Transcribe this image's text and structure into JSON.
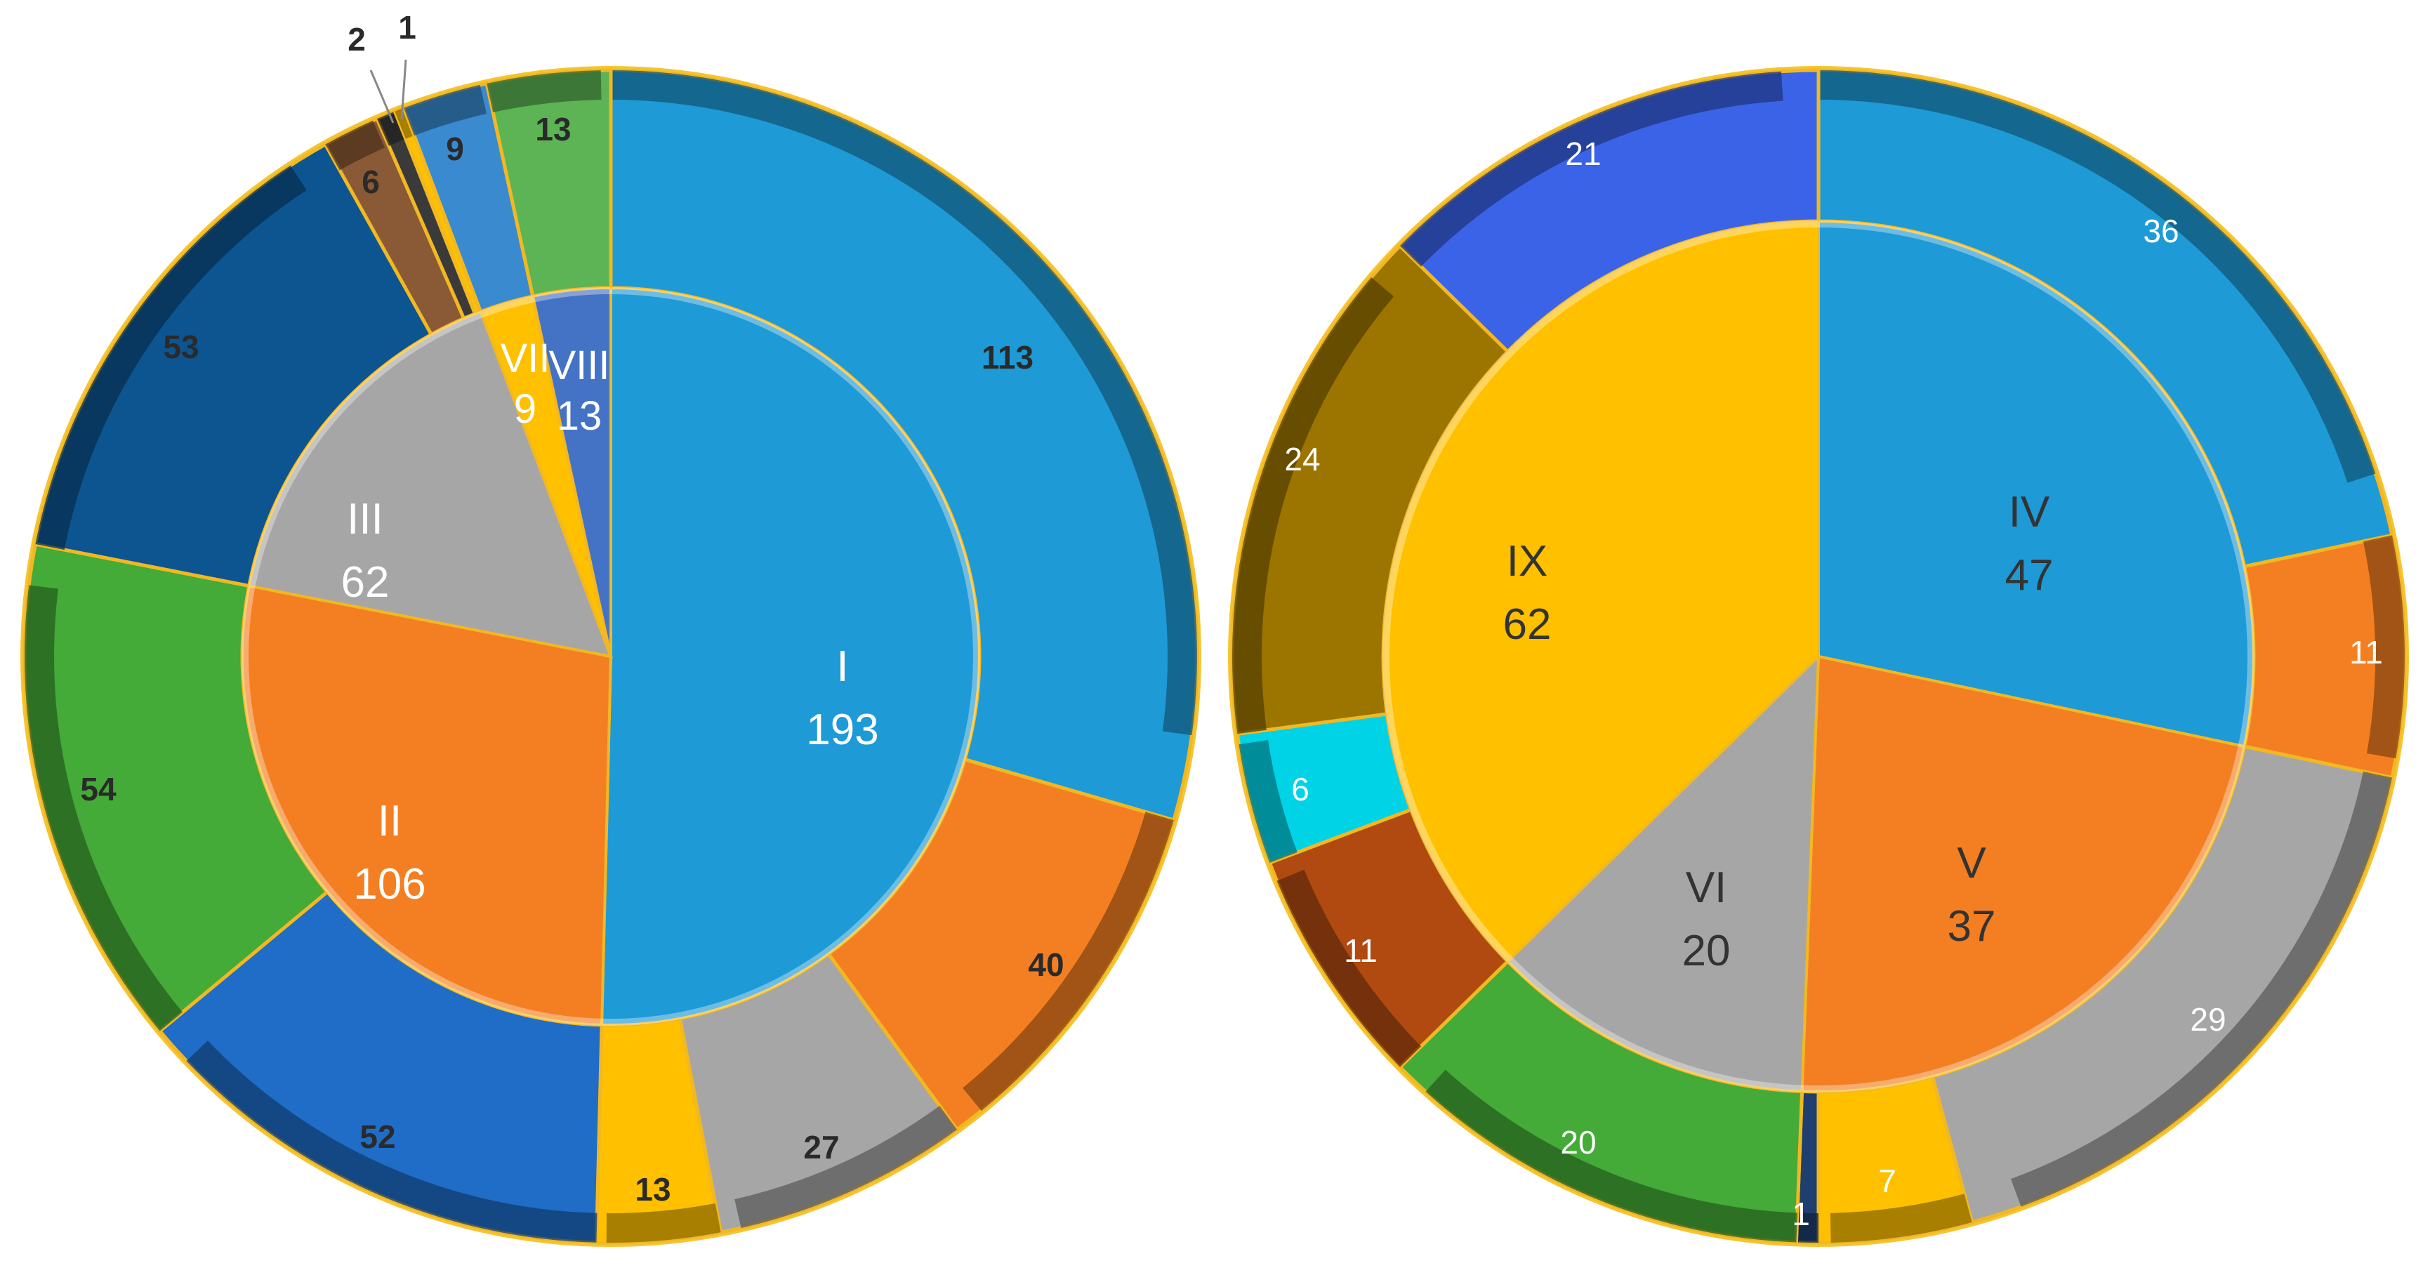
{
  "chart_data": [
    {
      "type": "pie",
      "subtype": "nested-donut",
      "title": "",
      "inner": [
        {
          "label": "I",
          "value": 193,
          "color": "#1e9ad6"
        },
        {
          "label": "II",
          "value": 106,
          "color": "#f47f22"
        },
        {
          "label": "III",
          "value": 62,
          "color": "#a6a6a6"
        },
        {
          "label": "VII",
          "value": 9,
          "color": "#ffc000"
        },
        {
          "label": "VIII",
          "value": 13,
          "color": "#4472c4"
        }
      ],
      "outer": [
        {
          "value": 113,
          "label": "113",
          "color": "#1e9ad6",
          "parent": "I"
        },
        {
          "value": 40,
          "label": "40",
          "color": "#f47f22",
          "parent": "I"
        },
        {
          "value": 27,
          "label": "27",
          "color": "#a6a6a6",
          "parent": "I"
        },
        {
          "value": 13,
          "label": "13",
          "color": "#ffc000",
          "parent": "I"
        },
        {
          "value": 52,
          "label": "52",
          "color": "#1f6dc7",
          "parent": "II"
        },
        {
          "value": 54,
          "label": "54",
          "color": "#44aa38",
          "parent": "II"
        },
        {
          "value": 53,
          "label": "53",
          "color": "#0c5591",
          "parent": "III"
        },
        {
          "value": 6,
          "label": "6",
          "color": "#8a5a36",
          "parent": "III"
        },
        {
          "value": 2,
          "label": "2",
          "color": "#3a3a3a",
          "parent": "III"
        },
        {
          "value": 1,
          "label": "1",
          "color": "#ffc000",
          "parent": "III"
        },
        {
          "value": 9,
          "label": "9",
          "color": "#3a8ad0",
          "parent": "VII"
        },
        {
          "value": 13,
          "label": "13",
          "color": "#5cb454",
          "parent": "VIII"
        }
      ]
    },
    {
      "type": "pie",
      "subtype": "nested-donut",
      "title": "",
      "inner": [
        {
          "label": "IV",
          "value": 47,
          "color": "#1e9ad6"
        },
        {
          "label": "V",
          "value": 37,
          "color": "#f47f22"
        },
        {
          "label": "VI",
          "value": 20,
          "color": "#a6a6a6"
        },
        {
          "label": "IX",
          "value": 62,
          "color": "#ffc000"
        }
      ],
      "outer": [
        {
          "value": 36,
          "label": "36",
          "color": "#1e9ad6",
          "parent": "IV"
        },
        {
          "value": 11,
          "label": "11",
          "color": "#f47f22",
          "parent": "IV"
        },
        {
          "value": 29,
          "label": "29",
          "color": "#a6a6a6",
          "parent": "V"
        },
        {
          "value": 7,
          "label": "7",
          "color": "#ffc000",
          "parent": "V"
        },
        {
          "value": 1,
          "label": "1",
          "color": "#1f3f6e",
          "parent": "V"
        },
        {
          "value": 20,
          "label": "20",
          "color": "#44aa38",
          "parent": "VI"
        },
        {
          "value": 11,
          "label": "11",
          "color": "#b04a10",
          "parent": "IX"
        },
        {
          "value": 6,
          "label": "6",
          "color": "#00d3e6",
          "parent": "IX"
        },
        {
          "value": 24,
          "label": "24",
          "color": "#9c7400",
          "parent": "IX"
        },
        {
          "value": 21,
          "label": "21",
          "color": "#3b63e8",
          "parent": "IX"
        }
      ]
    }
  ]
}
